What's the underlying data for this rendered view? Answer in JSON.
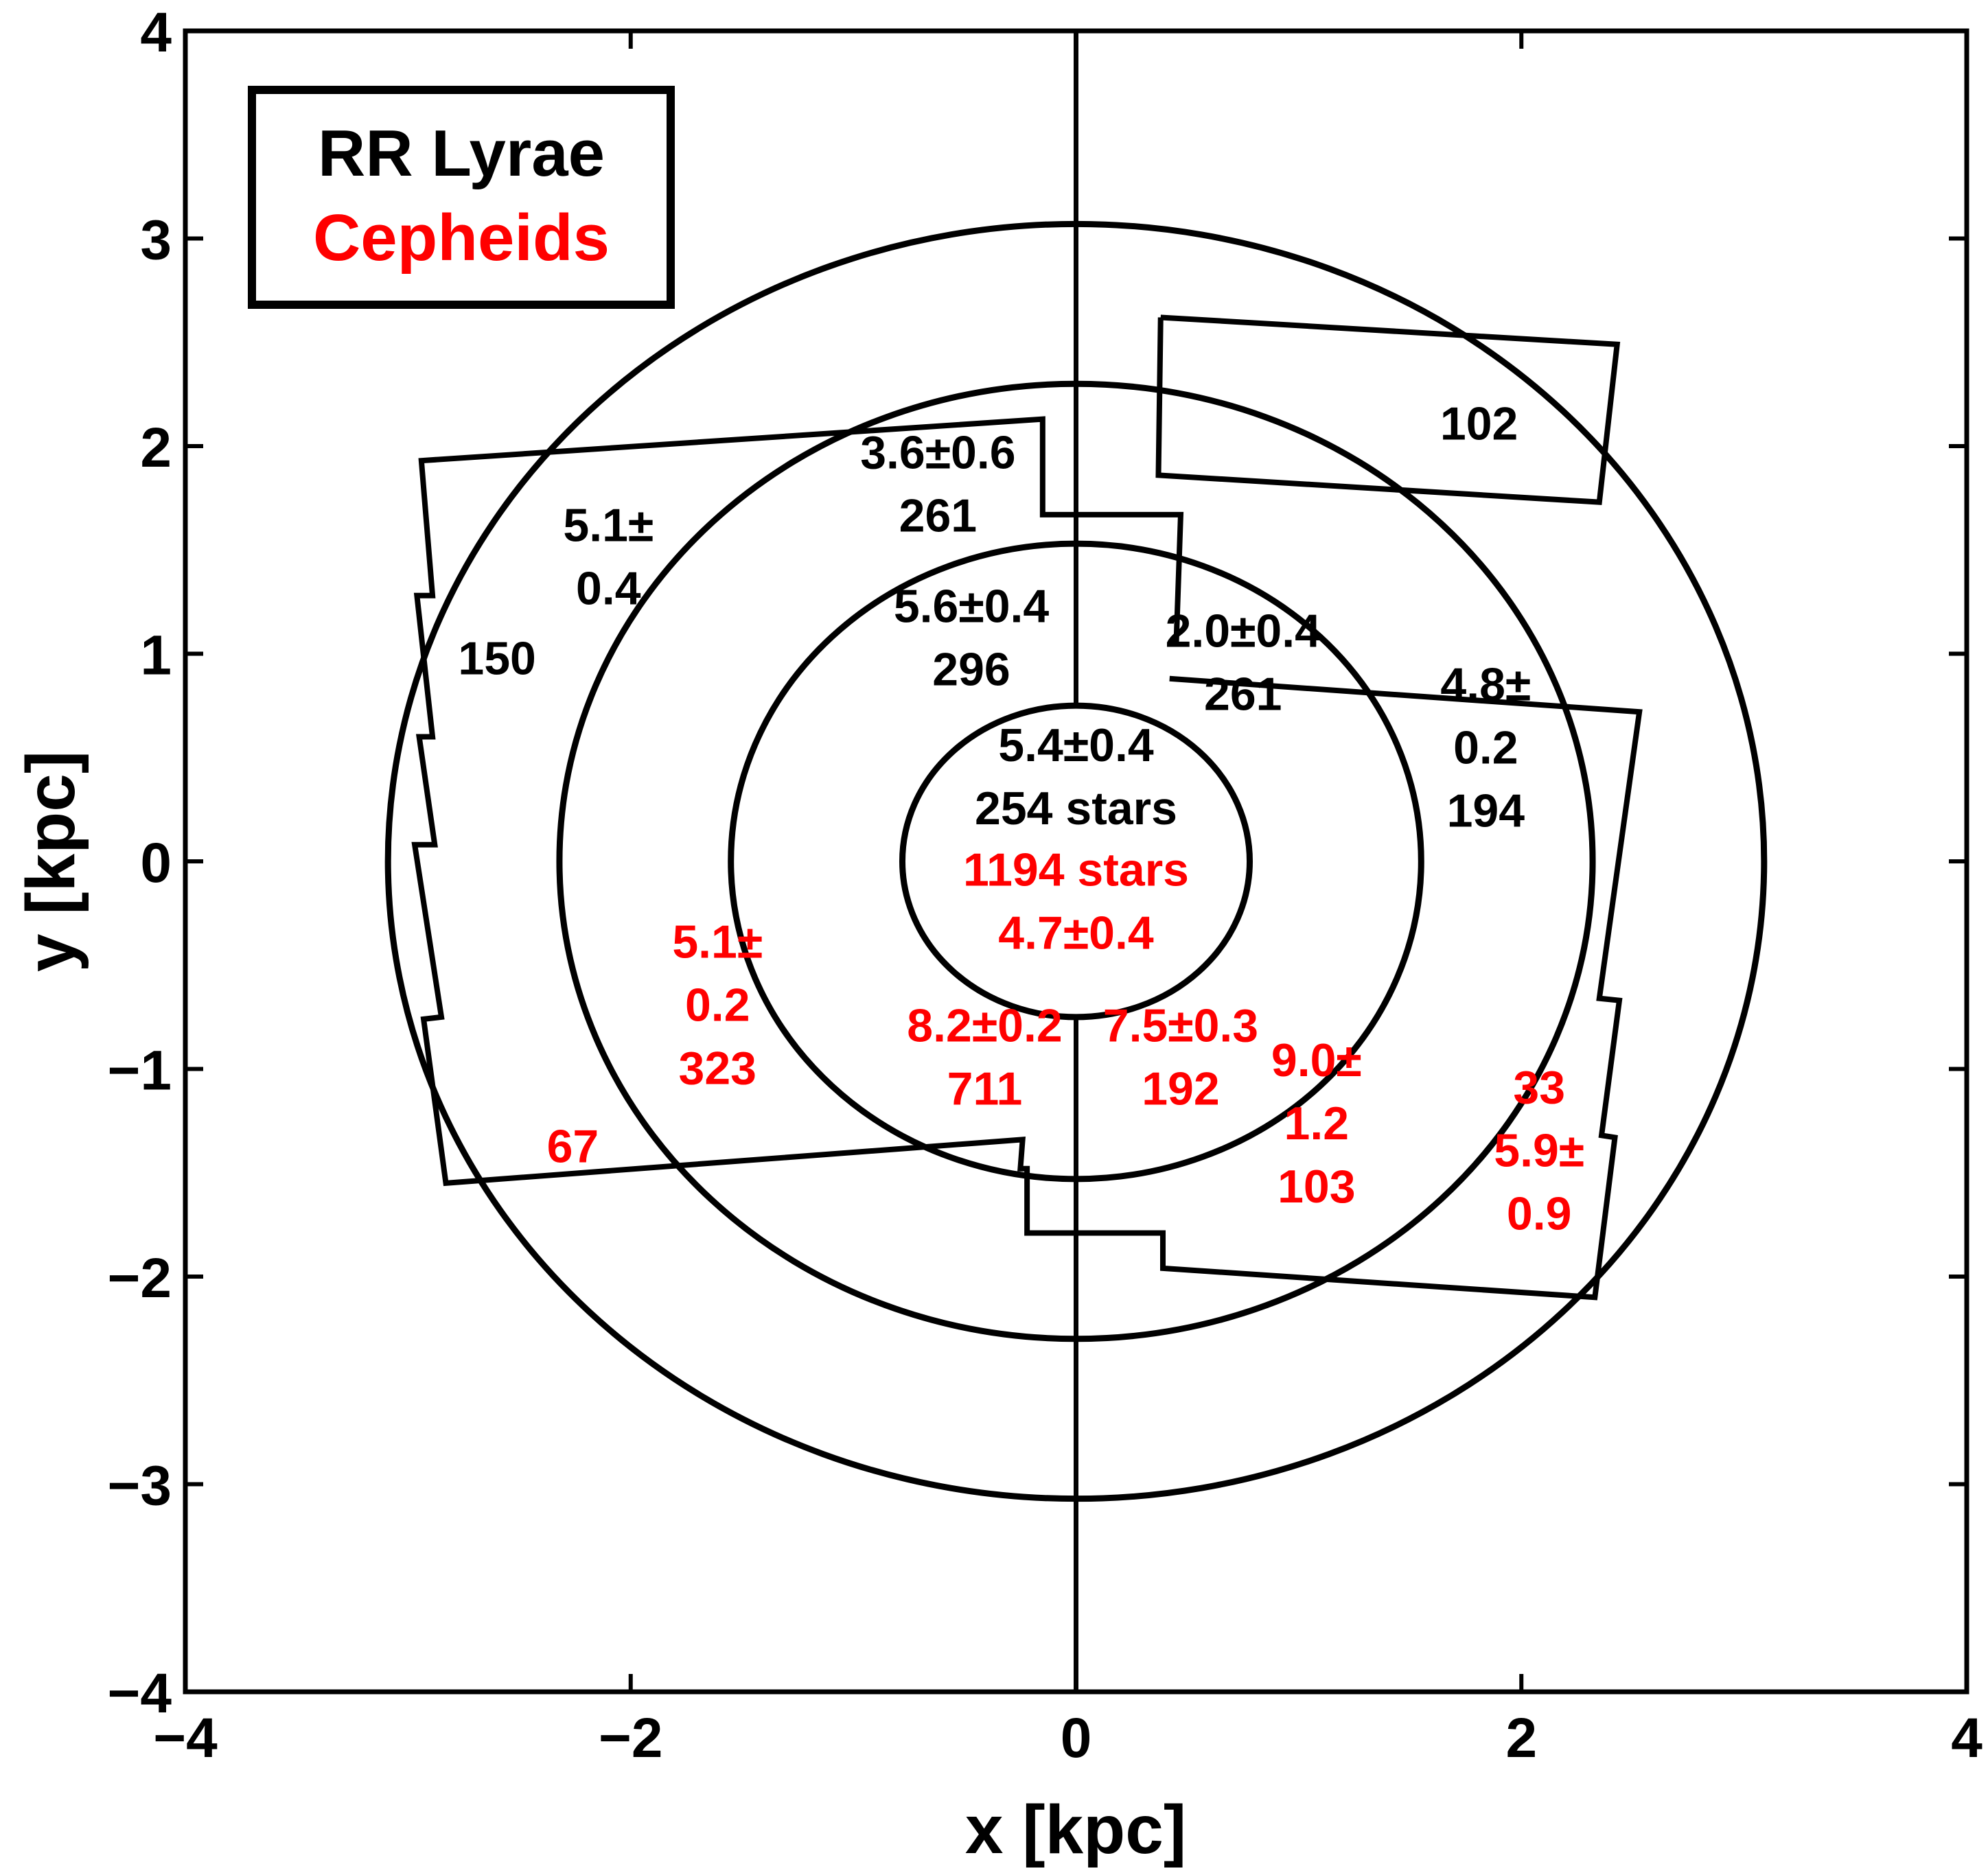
{
  "chart_data": {
    "type": "scatter",
    "xlabel": "x [kpc]",
    "ylabel": "y [kpc]",
    "xlim": [
      -4,
      4
    ],
    "ylim": [
      -4,
      4
    ],
    "x_ticks": [
      -4,
      -2,
      0,
      2,
      4
    ],
    "y_ticks": [
      -4,
      -3,
      -2,
      -1,
      0,
      1,
      2,
      3,
      4
    ],
    "x_tick_labels": [
      "−4",
      "−2",
      "0",
      "2",
      "4"
    ],
    "y_tick_labels": [
      "−4",
      "−3",
      "−2",
      "−1",
      "0",
      "1",
      "2",
      "3",
      "4"
    ],
    "grid": false,
    "legend": {
      "position": "top-left",
      "entries": [
        {
          "label": "RR Lyrae",
          "color": "#000000"
        },
        {
          "label": "Cepheids",
          "color": "#ff0000"
        }
      ]
    },
    "circles": [
      {
        "r_x": 0.78,
        "r_y": 0.75
      },
      {
        "r_x": 1.55,
        "r_y": 1.53
      },
      {
        "r_x": 2.32,
        "r_y": 2.3
      },
      {
        "r_x": 3.09,
        "r_y": 3.07
      }
    ],
    "vertical_lines": [
      {
        "x": 0,
        "y": [
          0.75,
          4
        ]
      },
      {
        "x": 0,
        "y": [
          -4,
          -0.75
        ]
      }
    ],
    "boxes": [
      {
        "points": [
          [
            0.38,
            2.62
          ],
          [
            2.43,
            2.49
          ],
          [
            2.35,
            1.73
          ],
          [
            0.37,
            1.86
          ],
          [
            0.38,
            2.62
          ]
        ]
      },
      {
        "points": [
          [
            0.42,
            0.88
          ],
          [
            2.53,
            0.72
          ],
          [
            2.35,
            -0.66
          ],
          [
            2.44,
            -0.67
          ],
          [
            2.36,
            -1.32
          ],
          [
            2.42,
            -1.33
          ],
          [
            2.33,
            -2.1
          ],
          [
            0.39,
            -1.96
          ],
          [
            0.39,
            -1.79
          ],
          [
            -0.22,
            -1.79
          ],
          [
            -0.22,
            -1.48
          ],
          [
            -0.25,
            -1.48
          ],
          [
            -0.24,
            -1.34
          ],
          [
            -2.83,
            -1.55
          ],
          [
            -2.93,
            -0.76
          ],
          [
            -2.85,
            -0.75
          ],
          [
            -2.97,
            0.08
          ],
          [
            -2.88,
            0.08
          ],
          [
            -2.95,
            0.6
          ],
          [
            -2.89,
            0.6
          ],
          [
            -2.96,
            1.28
          ],
          [
            -2.89,
            1.28
          ],
          [
            -2.94,
            1.93
          ],
          [
            -0.15,
            2.13
          ],
          [
            -0.15,
            1.67
          ],
          [
            0.47,
            1.67
          ],
          [
            0.45,
            1.05
          ]
        ]
      }
    ],
    "annotations": [
      {
        "lines": [
          "102"
        ],
        "x": 1.81,
        "y": 2.11,
        "color": "#000000"
      },
      {
        "lines": [
          "3.6±0.6",
          "261"
        ],
        "x": -0.62,
        "y": 1.82,
        "color": "#000000"
      },
      {
        "lines": [
          "5.1±",
          "0.4"
        ],
        "x": -2.1,
        "y": 1.47,
        "color": "#000000"
      },
      {
        "lines": [
          "150"
        ],
        "x": -2.6,
        "y": 0.98,
        "color": "#000000"
      },
      {
        "lines": [
          "5.6±0.4",
          "296"
        ],
        "x": -0.47,
        "y": 1.08,
        "color": "#000000"
      },
      {
        "lines": [
          "2.0±0.4",
          "261"
        ],
        "x": 0.75,
        "y": 0.96,
        "color": "#000000"
      },
      {
        "lines": [
          "4.8±",
          "0.2",
          "194"
        ],
        "x": 1.84,
        "y": 0.55,
        "color": "#000000"
      },
      {
        "lines": [
          "5.4±0.4",
          "254 stars"
        ],
        "x": 0.0,
        "y": 0.41,
        "color": "#000000"
      },
      {
        "lines": [
          "1194 stars",
          "4.7±0.4"
        ],
        "x": 0.0,
        "y": -0.19,
        "color": "#ff0000"
      },
      {
        "lines": [
          "5.1±",
          "0.2",
          "323"
        ],
        "x": -1.61,
        "y": -0.69,
        "color": "#ff0000"
      },
      {
        "lines": [
          "67"
        ],
        "x": -2.26,
        "y": -1.37,
        "color": "#ff0000"
      },
      {
        "lines": [
          "8.2±0.2",
          "711"
        ],
        "x": -0.41,
        "y": -0.94,
        "color": "#ff0000"
      },
      {
        "lines": [
          "7.5±0.3",
          "192"
        ],
        "x": 0.47,
        "y": -0.94,
        "color": "#ff0000"
      },
      {
        "lines": [
          "9.0±",
          "1.2",
          "103"
        ],
        "x": 1.08,
        "y": -1.26,
        "color": "#ff0000"
      },
      {
        "lines": [
          "33",
          "5.9±",
          "0.9"
        ],
        "x": 2.08,
        "y": -1.39,
        "color": "#ff0000"
      }
    ]
  }
}
